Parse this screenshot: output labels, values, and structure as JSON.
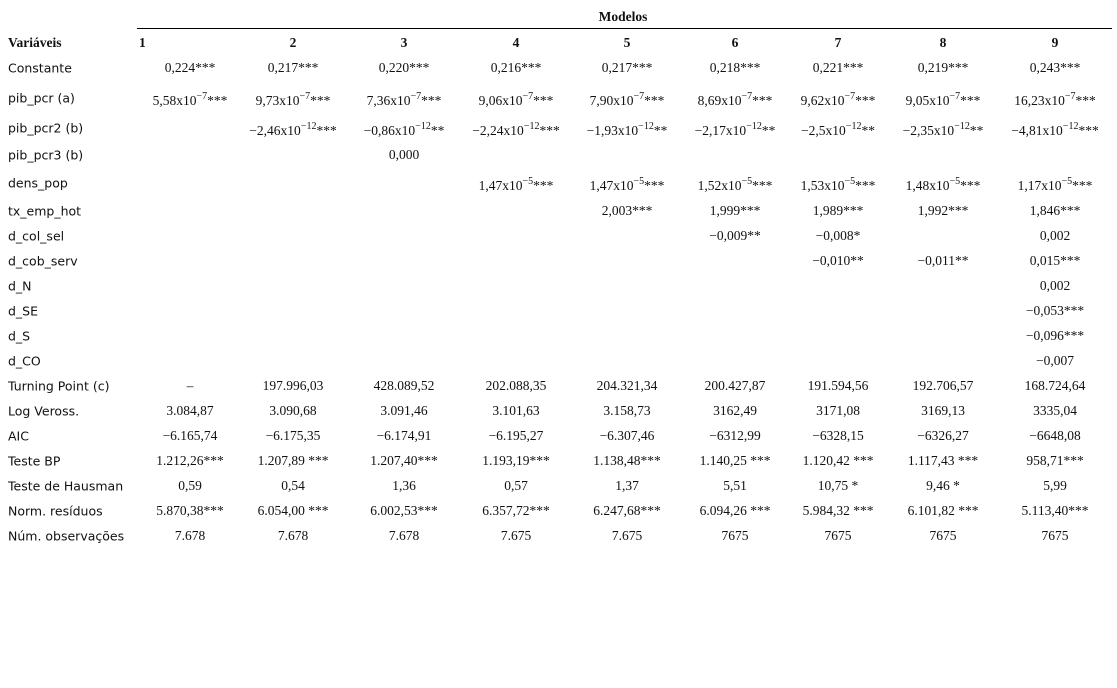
{
  "table": {
    "group_header": "Modelos",
    "columns": [
      "Variáveis",
      "1",
      "2",
      "3",
      "4",
      "5",
      "6",
      "7",
      "8",
      "9"
    ],
    "rows": [
      {
        "label": "Constante",
        "cells": [
          "0,224***",
          "0,217***",
          "0,220***",
          "0,216***",
          "0,217***",
          "0,218***",
          "0,221***",
          "0,219***",
          "0,243***"
        ]
      },
      {
        "label": "pib_pcr (a)",
        "cells": [
          {
            "base": "5,58x10",
            "exp": "−7",
            "suffix": "***"
          },
          {
            "base": "9,73x10",
            "exp": "−7",
            "suffix": "***"
          },
          {
            "base": "7,36x10",
            "exp": "−7",
            "suffix": "***"
          },
          {
            "base": "9,06x10",
            "exp": "−7",
            "suffix": "***"
          },
          {
            "base": "7,90x10",
            "exp": "−7",
            "suffix": "***"
          },
          {
            "base": "8,69x10",
            "exp": "−7",
            "suffix": "***"
          },
          {
            "base": "9,62x10",
            "exp": "−7",
            "suffix": "***"
          },
          {
            "base": "9,05x10",
            "exp": "−7",
            "suffix": "***"
          },
          {
            "base": "16,23x10",
            "exp": "−7",
            "suffix": "***"
          }
        ]
      },
      {
        "label": "pib_pcr2 (b)",
        "cells": [
          null,
          {
            "base": "−2,46x10",
            "exp": "−12",
            "suffix": "***"
          },
          {
            "base": "−0,86x10",
            "exp": "−12",
            "suffix": "**"
          },
          {
            "base": "−2,24x10",
            "exp": "−12",
            "suffix": "***"
          },
          {
            "base": "−1,93x10",
            "exp": "−12",
            "suffix": "**"
          },
          {
            "base": "−2,17x10",
            "exp": "−12",
            "suffix": "**"
          },
          {
            "base": "−2,5x10",
            "exp": "−12",
            "suffix": "**"
          },
          {
            "base": "−2,35x10",
            "exp": "−12",
            "suffix": "**"
          },
          {
            "base": "−4,81x10",
            "exp": "−12",
            "suffix": "***"
          }
        ]
      },
      {
        "label": "pib_pcr3 (b)",
        "cells": [
          null,
          null,
          "0,000",
          null,
          null,
          null,
          null,
          null,
          null
        ]
      },
      {
        "label": "dens_pop",
        "cells": [
          null,
          null,
          null,
          {
            "base": "1,47x10",
            "exp": "−5",
            "suffix": "***"
          },
          {
            "base": "1,47x10",
            "exp": "−5",
            "suffix": "***"
          },
          {
            "base": "1,52x10",
            "exp": "−5",
            "suffix": "***"
          },
          {
            "base": "1,53x10",
            "exp": "−5",
            "suffix": "***"
          },
          {
            "base": "1,48x10",
            "exp": "−5",
            "suffix": "***"
          },
          {
            "base": "1,17x10",
            "exp": "−5",
            "suffix": "***"
          }
        ]
      },
      {
        "label": "tx_emp_hot",
        "cells": [
          null,
          null,
          null,
          null,
          "2,003***",
          "1,999***",
          "1,989***",
          "1,992***",
          "1,846***"
        ]
      },
      {
        "label": "d_col_sel",
        "cells": [
          null,
          null,
          null,
          null,
          null,
          "−0,009**",
          "−0,008*",
          null,
          "0,002"
        ]
      },
      {
        "label": "d_cob_serv",
        "cells": [
          null,
          null,
          null,
          null,
          null,
          null,
          "−0,010**",
          "−0,011**",
          "0,015***"
        ]
      },
      {
        "label": "d_N",
        "cells": [
          null,
          null,
          null,
          null,
          null,
          null,
          null,
          null,
          "0,002"
        ]
      },
      {
        "label": "d_SE",
        "cells": [
          null,
          null,
          null,
          null,
          null,
          null,
          null,
          null,
          "−0,053***"
        ]
      },
      {
        "label": "d_S",
        "cells": [
          null,
          null,
          null,
          null,
          null,
          null,
          null,
          null,
          "−0,096***"
        ]
      },
      {
        "label": "d_CO",
        "cells": [
          null,
          null,
          null,
          null,
          null,
          null,
          null,
          null,
          "−0,007"
        ]
      },
      {
        "label": "Turning Point (c)",
        "cells": [
          "–",
          "197.996,03",
          "428.089,52",
          "202.088,35",
          "204.321,34",
          "200.427,87",
          "191.594,56",
          "192.706,57",
          "168.724,64"
        ]
      },
      {
        "label": "Log Veross.",
        "cells": [
          "3.084,87",
          "3.090,68",
          "3.091,46",
          "3.101,63",
          "3.158,73",
          "3162,49",
          "3171,08",
          "3169,13",
          "3335,04"
        ]
      },
      {
        "label": "AIC",
        "cells": [
          "−6.165,74",
          "−6.175,35",
          "−6.174,91",
          "−6.195,27",
          "−6.307,46",
          "−6312,99",
          "−6328,15",
          "−6326,27",
          "−6648,08"
        ]
      },
      {
        "label": "Teste BP",
        "cells": [
          "1.212,26***",
          "1.207,89 ***",
          "1.207,40***",
          "1.193,19***",
          "1.138,48***",
          "1.140,25 ***",
          "1.120,42 ***",
          "1.117,43 ***",
          "958,71***"
        ]
      },
      {
        "label": "Teste de Hausman",
        "cells": [
          "0,59",
          "0,54",
          "1,36",
          "0,57",
          "1,37",
          "5,51",
          "10,75 *",
          "9,46 *",
          "5,99"
        ]
      },
      {
        "label": "Norm. resíduos",
        "cells": [
          "5.870,38***",
          "6.054,00 ***",
          "6.002,53***",
          "6.357,72***",
          "6.247,68***",
          "6.094,26 ***",
          "5.984,32 ***",
          "6.101,82 ***",
          "5.113,40***"
        ]
      },
      {
        "label": "Núm. observações",
        "cells": [
          "7.678",
          "7.678",
          "7.678",
          "7.675",
          "7.675",
          "7675",
          "7675",
          "7675",
          "7675"
        ]
      }
    ]
  }
}
